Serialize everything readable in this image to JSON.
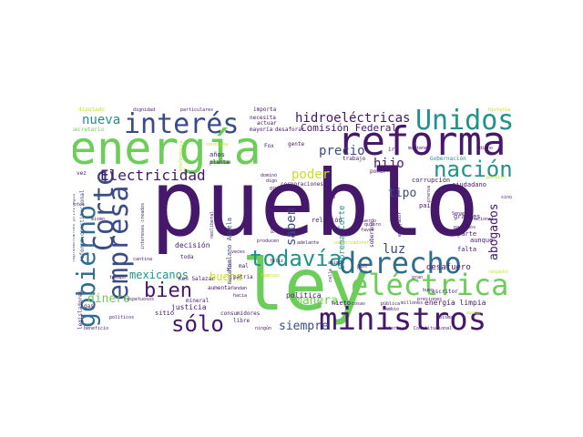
{
  "palette": {
    "dark": "#45186b",
    "indigo": "#3a4c86",
    "blue": "#2f6d8e",
    "teal": "#21918c",
    "green": "#35b779",
    "lime": "#6cce59",
    "yellow": "#c8e020"
  },
  "words": [
    {
      "text": "pueblo",
      "size": 100,
      "color": "dark",
      "rot": 0
    },
    {
      "text": "ley",
      "size": 78,
      "color": "lime",
      "rot": 0
    },
    {
      "text": "energía",
      "size": 50,
      "color": "lime",
      "rot": 0
    },
    {
      "text": "reforma",
      "size": 44,
      "color": "dark",
      "rot": 0
    },
    {
      "text": "ministros",
      "size": 34,
      "color": "dark",
      "rot": 0
    },
    {
      "text": "eléctrica",
      "size": 32,
      "color": "lime",
      "rot": 0
    },
    {
      "text": "derecho",
      "size": 32,
      "color": "blue",
      "rot": 0
    },
    {
      "text": "Unidos",
      "size": 30,
      "color": "teal",
      "rot": 0
    },
    {
      "text": "interés",
      "size": 30,
      "color": "indigo",
      "rot": 0
    },
    {
      "text": "empresa",
      "size": 30,
      "color": "indigo",
      "rot": -90
    },
    {
      "text": "Corte",
      "size": 30,
      "color": "indigo",
      "rot": -90
    },
    {
      "text": "gobierno",
      "size": 28,
      "color": "blue",
      "rot": -90
    },
    {
      "text": "nación",
      "size": 24,
      "color": "teal",
      "rot": 0
    },
    {
      "text": "todavía",
      "size": 24,
      "color": "teal",
      "rot": 0
    },
    {
      "text": "sólo",
      "size": 24,
      "color": "dark",
      "rot": 0
    },
    {
      "text": "bien",
      "size": 22,
      "color": "dark",
      "rot": 0
    },
    {
      "text": "Electricidad",
      "size": 16,
      "color": "dark",
      "rot": 0
    },
    {
      "text": "hidroeléctricas",
      "size": 14,
      "color": "dark",
      "rot": 0
    },
    {
      "text": "nueva",
      "size": 14,
      "color": "teal",
      "rot": 0
    },
    {
      "text": "Comisión Federal",
      "size": 11,
      "color": "dark",
      "rot": 0
    },
    {
      "text": "precio",
      "size": 14,
      "color": "indigo",
      "rot": 0
    },
    {
      "text": "hijo",
      "size": 14,
      "color": "dark",
      "rot": 0
    },
    {
      "text": "poder",
      "size": 14,
      "color": "yellow",
      "rot": 0
    },
    {
      "text": "tipo",
      "size": 13,
      "color": "indigo",
      "rot": 0
    },
    {
      "text": "saben",
      "size": 14,
      "color": "indigo",
      "rot": -90
    },
    {
      "text": "luz",
      "size": 14,
      "color": "indigo",
      "rot": 0
    },
    {
      "text": "abogados",
      "size": 13,
      "color": "dark",
      "rot": -90
    },
    {
      "text": "buena",
      "size": 12,
      "color": "yellow",
      "rot": 0
    },
    {
      "text": "manera",
      "size": 13,
      "color": "lime",
      "rot": 0
    },
    {
      "text": "mexicanos",
      "size": 12,
      "color": "teal",
      "rot": 0
    },
    {
      "text": "dinero",
      "size": 13,
      "color": "lime",
      "rot": 0
    },
    {
      "text": "siempre",
      "size": 13,
      "color": "indigo",
      "rot": 0
    },
    {
      "text": "Suprema Corte",
      "size": 9,
      "color": "teal",
      "rot": -90
    },
    {
      "text": "desafuero",
      "size": 9,
      "color": "dark",
      "rot": 0
    },
    {
      "text": "energía limpia",
      "size": 8,
      "color": "dark",
      "rot": 0
    },
    {
      "text": "justicia",
      "size": 8,
      "color": "dark",
      "rot": 0
    },
    {
      "text": "política",
      "size": 8,
      "color": "dark",
      "rot": 0
    },
    {
      "text": "decisión",
      "size": 8,
      "color": "dark",
      "rot": 0
    },
    {
      "text": "Marlano Azuela",
      "size": 7,
      "color": "indigo",
      "rot": -90
    },
    {
      "text": "relación",
      "size": 7,
      "color": "dark",
      "rot": 0
    },
    {
      "text": "grandes",
      "size": 7,
      "color": "dark",
      "rot": 0
    },
    {
      "text": "parte",
      "size": 7,
      "color": "dark",
      "rot": 0
    },
    {
      "text": "falta",
      "size": 7,
      "color": "dark",
      "rot": 0
    },
    {
      "text": "aunque",
      "size": 7,
      "color": "dark",
      "rot": 0
    },
    {
      "text": "corrupción",
      "size": 7,
      "color": "dark",
      "rot": 0
    },
    {
      "text": "ciudadano",
      "size": 7,
      "color": "dark",
      "rot": 0
    },
    {
      "text": "país",
      "size": 7,
      "color": "dark",
      "rot": 0
    },
    {
      "text": "años",
      "size": 7,
      "color": "dark",
      "rot": 0
    },
    {
      "text": "planta",
      "size": 6,
      "color": "dark",
      "rot": 0
    },
    {
      "text": "Fox",
      "size": 6,
      "color": "dark",
      "rot": 0
    },
    {
      "text": "gente",
      "size": 6,
      "color": "dark",
      "rot": 0
    },
    {
      "text": "importa",
      "size": 6,
      "color": "dark",
      "rot": 0
    },
    {
      "text": "necesita",
      "size": 6,
      "color": "dark",
      "rot": 0
    },
    {
      "text": "actuar",
      "size": 6,
      "color": "dark",
      "rot": 0
    },
    {
      "text": "mayoría",
      "size": 6,
      "color": "dark",
      "rot": 0
    },
    {
      "text": "desaforar",
      "size": 6,
      "color": "dark",
      "rot": 0
    },
    {
      "text": "diputado",
      "size": 6,
      "color": "yellow",
      "rot": 0
    },
    {
      "text": "secretario",
      "size": 6,
      "color": "lime",
      "rot": 0
    },
    {
      "text": "dignidad",
      "size": 5,
      "color": "dark",
      "rot": 0
    },
    {
      "text": "particulares",
      "size": 5,
      "color": "dark",
      "rot": 0
    },
    {
      "text": "historia",
      "size": 5,
      "color": "yellow",
      "rot": 0
    },
    {
      "text": "mantener",
      "size": 5,
      "color": "dark",
      "rot": 0
    },
    {
      "text": "dicho",
      "size": 5,
      "color": "dark",
      "rot": 0
    },
    {
      "text": "Gobernación",
      "size": 6,
      "color": "teal",
      "rot": 0
    },
    {
      "text": "trabajo",
      "size": 6,
      "color": "dark",
      "rot": 0
    },
    {
      "text": "poner",
      "size": 6,
      "color": "dark",
      "rot": 0
    },
    {
      "text": "dominó",
      "size": 5,
      "color": "dark",
      "rot": 0
    },
    {
      "text": "digo",
      "size": 5,
      "color": "dark",
      "rot": 0
    },
    {
      "text": "corporaciones",
      "size": 6,
      "color": "dark",
      "rot": 0
    },
    {
      "text": "grupo",
      "size": 5,
      "color": "dark",
      "rot": 0
    },
    {
      "text": "agua",
      "size": 5,
      "color": "dark",
      "rot": 0
    },
    {
      "text": "haciendo",
      "size": 6,
      "color": "dark",
      "rot": 0
    },
    {
      "text": "soberano",
      "size": 6,
      "color": "dark",
      "rot": -90
    },
    {
      "text": "embajador",
      "size": 5,
      "color": "dark",
      "rot": -90
    },
    {
      "text": "Senado",
      "size": 5,
      "color": "dark",
      "rot": 0
    },
    {
      "text": "nacional",
      "size": 5,
      "color": "dark",
      "rot": 0
    },
    {
      "text": "partidos",
      "size": 5,
      "color": "dark",
      "rot": 0
    },
    {
      "text": "sino",
      "size": 5,
      "color": "dark",
      "rot": 0
    },
    {
      "text": "paraíso",
      "size": 5,
      "color": "yellow",
      "rot": 0
    },
    {
      "text": "vez",
      "size": 6,
      "color": "dark",
      "rot": 0
    },
    {
      "text": "votos",
      "size": 5,
      "color": "dark",
      "rot": 0
    },
    {
      "text": "reforma constitucional",
      "size": 6,
      "color": "indigo",
      "rot": -90
    },
    {
      "text": "representantes privilegio",
      "size": 5,
      "color": "indigo",
      "rot": -90
    },
    {
      "text": "mismo",
      "size": 5,
      "color": "dark",
      "rot": 0
    },
    {
      "text": "intereses creados",
      "size": 5,
      "color": "dark",
      "rot": -90
    },
    {
      "text": "cantina",
      "size": 5,
      "color": "dark",
      "rot": 0
    },
    {
      "text": "tiempo",
      "size": 5,
      "color": "dark",
      "rot": 0
    },
    {
      "text": "legisladores",
      "size": 6,
      "color": "dark",
      "rot": -90
    },
    {
      "text": "gas",
      "size": 6,
      "color": "dark",
      "rot": 0
    },
    {
      "text": "políticos",
      "size": 5,
      "color": "dark",
      "rot": 0
    },
    {
      "text": "beneficio",
      "size": 5,
      "color": "dark",
      "rot": 0
    },
    {
      "text": "respetuosos",
      "size": 5,
      "color": "dark",
      "rot": 0
    },
    {
      "text": "sitio",
      "size": 7,
      "color": "dark",
      "rot": 0
    },
    {
      "text": "mineral",
      "size": 6,
      "color": "dark",
      "rot": 0
    },
    {
      "text": "Ken Salazar",
      "size": 6,
      "color": "dark",
      "rot": 0
    },
    {
      "text": "aumentar",
      "size": 6,
      "color": "dark",
      "rot": 0
    },
    {
      "text": "toda",
      "size": 6,
      "color": "dark",
      "rot": 0
    },
    {
      "text": "mal",
      "size": 6,
      "color": "dark",
      "rot": 0
    },
    {
      "text": "patria",
      "size": 6,
      "color": "dark",
      "rot": 0
    },
    {
      "text": "hacia",
      "size": 5,
      "color": "dark",
      "rot": 0
    },
    {
      "text": "andan",
      "size": 5,
      "color": "dark",
      "rot": 0
    },
    {
      "text": "famosas",
      "size": 5,
      "color": "yellow",
      "rot": 0
    },
    {
      "text": "consumidores",
      "size": 6,
      "color": "dark",
      "rot": 0
    },
    {
      "text": "libre",
      "size": 6,
      "color": "dark",
      "rot": 0
    },
    {
      "text": "ningún",
      "size": 5,
      "color": "dark",
      "rot": 0
    },
    {
      "text": "veces",
      "size": 5,
      "color": "dark",
      "rot": 0
    },
    {
      "text": "República",
      "size": 5,
      "color": "dark",
      "rot": -90
    },
    {
      "text": "feliz",
      "size": 5,
      "color": "dark",
      "rot": 0
    },
    {
      "text": "nieto",
      "size": 7,
      "color": "dark",
      "rot": 0
    },
    {
      "text": "cosas",
      "size": 5,
      "color": "dark",
      "rot": 0
    },
    {
      "text": "pública",
      "size": 5,
      "color": "dark",
      "rot": 0
    },
    {
      "text": "cambio",
      "size": 5,
      "color": "dark",
      "rot": 0
    },
    {
      "text": "presiones",
      "size": 5,
      "color": "dark",
      "rot": 0
    },
    {
      "text": "millones",
      "size": 5,
      "color": "dark",
      "rot": 0
    },
    {
      "text": "escritor",
      "size": 6,
      "color": "dark",
      "rot": 0
    },
    {
      "text": "intereses",
      "size": 5,
      "color": "dark",
      "rot": 0
    },
    {
      "text": "Constitucional",
      "size": 5,
      "color": "dark",
      "rot": 0
    },
    {
      "text": "respeto",
      "size": 5,
      "color": "yellow",
      "rot": 0
    },
    {
      "text": "pon",
      "size": 6,
      "color": "dark",
      "rot": 0
    },
    {
      "text": "amigo",
      "size": 5,
      "color": "dark",
      "rot": 0
    },
    {
      "text": "adelante",
      "size": 5,
      "color": "dark",
      "rot": 0
    },
    {
      "text": "producen",
      "size": 5,
      "color": "dark",
      "rot": 0
    },
    {
      "text": "conservadores",
      "size": 5,
      "color": "yellow",
      "rot": 0
    },
    {
      "text": "quiero",
      "size": 5,
      "color": "dark",
      "rot": 0
    },
    {
      "text": "acuerdo",
      "size": 5,
      "color": "dark",
      "rot": 0
    },
    {
      "text": "favor",
      "size": 5,
      "color": "dark",
      "rot": 0
    },
    {
      "text": "gran",
      "size": 5,
      "color": "dark",
      "rot": 0
    },
    {
      "text": "buen",
      "size": 5,
      "color": "dark",
      "rot": 0
    },
    {
      "text": "misma",
      "size": 5,
      "color": "dark",
      "rot": 0
    },
    {
      "text": "ayuda",
      "size": 5,
      "color": "yellow",
      "rot": 0
    },
    {
      "text": "ir",
      "size": 6,
      "color": "dark",
      "rot": 0
    },
    {
      "text": "neoliberal",
      "size": 5,
      "color": "dark",
      "rot": -90
    },
    {
      "text": "consigna",
      "size": 5,
      "color": "yellow",
      "rot": 0
    },
    {
      "text": "preferencia",
      "size": 5,
      "color": "yellow",
      "rot": -90
    },
    {
      "text": "prensa",
      "size": 5,
      "color": "dark",
      "rot": -90
    },
    {
      "text": "pronunciamiento",
      "size": 5,
      "color": "dark",
      "rot": -90
    },
    {
      "text": "calle",
      "size": 5,
      "color": "dark",
      "rot": -90
    }
  ]
}
